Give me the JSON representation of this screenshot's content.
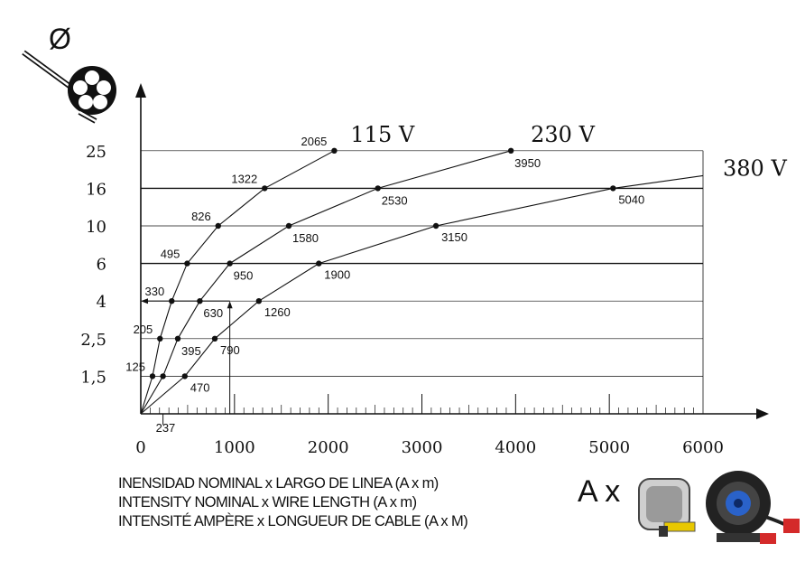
{
  "chart_data": {
    "type": "line",
    "title": "",
    "x_axis": {
      "range": [
        0,
        6000
      ],
      "ticks": [
        "0",
        "1000",
        "2000",
        "3000",
        "4000",
        "5000",
        "6000"
      ]
    },
    "y_axis": {
      "categories": [
        "1,5",
        "2,5",
        "4",
        "6",
        "10",
        "16",
        "25"
      ],
      "symbol": "Ø"
    },
    "series": [
      {
        "name": "115 V",
        "points": [
          {
            "cat": "1,5",
            "x": 125,
            "label": "125"
          },
          {
            "cat": "2,5",
            "x": 205,
            "label": "205"
          },
          {
            "cat": "4",
            "x": 330,
            "label": "330"
          },
          {
            "cat": "6",
            "x": 495,
            "label": "495"
          },
          {
            "cat": "10",
            "x": 826,
            "label": "826"
          },
          {
            "cat": "16",
            "x": 1322,
            "label": "1322"
          },
          {
            "cat": "25",
            "x": 2065,
            "label": "2065"
          }
        ]
      },
      {
        "name": "230 V",
        "points": [
          {
            "cat": "1,5",
            "x": 237,
            "label": "237"
          },
          {
            "cat": "2,5",
            "x": 395,
            "label": "395"
          },
          {
            "cat": "4",
            "x": 630,
            "label": "630"
          },
          {
            "cat": "6",
            "x": 950,
            "label": "950"
          },
          {
            "cat": "10",
            "x": 1580,
            "label": "1580"
          },
          {
            "cat": "16",
            "x": 2530,
            "label": "2530"
          },
          {
            "cat": "25",
            "x": 3950,
            "label": "3950"
          }
        ]
      },
      {
        "name": "380 V",
        "points": [
          {
            "cat": "1,5",
            "x": 470,
            "label": "470"
          },
          {
            "cat": "2,5",
            "x": 790,
            "label": "790"
          },
          {
            "cat": "4",
            "x": 1260,
            "label": "1260"
          },
          {
            "cat": "6",
            "x": 1900,
            "label": "1900"
          },
          {
            "cat": "10",
            "x": 3150,
            "label": "3150"
          },
          {
            "cat": "16",
            "x": 5040,
            "label": "5040"
          }
        ]
      }
    ],
    "example_path": {
      "cat": "4",
      "x": 950
    }
  },
  "captions": [
    "INENSIDAD NOMINAL x LARGO DE LINEA (A x m)",
    "INTENSITY NOMINAL x WIRE LENGTH  (A x m)",
    "INTENSITÉ  AMPÈRE x LONGUEUR DE CABLE (A x M)"
  ],
  "product_label": "A x",
  "icons": [
    "cable-cross-section-icon",
    "tape-measure-icon",
    "cable-reel-icon"
  ]
}
